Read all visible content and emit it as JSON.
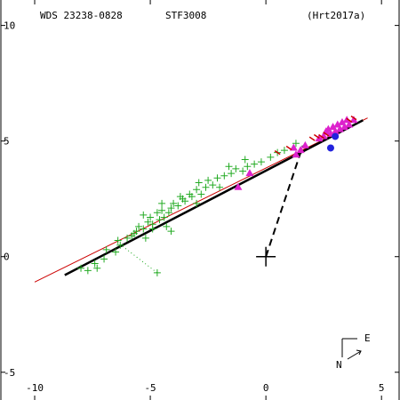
{
  "header": {
    "wds_id": "WDS 23238-0828",
    "discoverer": "STF3008",
    "orbit_ref": "(Hrt2017a)"
  },
  "compass": {
    "east_label": "E",
    "north_label": "N"
  },
  "colors": {
    "micrometer": "#22aa22",
    "speckle": "#dd22cc",
    "orbit": "#000000",
    "linear_fit": "#cc0000",
    "recent": "#2222dd"
  },
  "chart_data": {
    "type": "scatter",
    "title": "",
    "xlabel": "",
    "ylabel": "",
    "xlim": [
      -11.5,
      5.8
    ],
    "ylim": [
      -6.2,
      11.1
    ],
    "x_ticks": [
      -10,
      -5,
      0,
      5
    ],
    "y_ticks": [
      -5,
      0,
      5,
      10
    ],
    "x_tick_labels": [
      "-10",
      "-5",
      "0",
      "5"
    ],
    "y_tick_labels": [
      "-5",
      "0",
      "5",
      "10"
    ],
    "grid": false,
    "primary_star": [
      0,
      0
    ],
    "periastron_connector": {
      "from": [
        0,
        0
      ],
      "to": [
        1.6,
        4.8
      ]
    },
    "orbit_line": {
      "from": [
        -8.7,
        -0.8
      ],
      "to": [
        4.2,
        5.9
      ]
    },
    "linear_fit_line": {
      "from": [
        -10,
        -1.1
      ],
      "to": [
        4.4,
        6.0
      ]
    },
    "dotted_residual": {
      "from": [
        -6.2,
        0.45
      ],
      "to": [
        -4.7,
        -0.7
      ]
    },
    "series": [
      {
        "marker": "plus",
        "points": [
          [
            -8.0,
            -0.5
          ],
          [
            -7.7,
            -0.6
          ],
          [
            -7.4,
            -0.3
          ],
          [
            -7.0,
            -0.1
          ],
          [
            -6.9,
            0.3
          ],
          [
            -6.5,
            0.2
          ],
          [
            -6.3,
            0.5
          ],
          [
            -6.0,
            0.8
          ],
          [
            -5.8,
            0.9
          ],
          [
            -5.6,
            1.1
          ],
          [
            -5.5,
            1.3
          ],
          [
            -5.3,
            1.2
          ],
          [
            -5.1,
            1.5
          ],
          [
            -5.0,
            1.7
          ],
          [
            -4.9,
            1.4
          ],
          [
            -4.7,
            1.9
          ],
          [
            -4.6,
            1.6
          ],
          [
            -4.5,
            2.0
          ],
          [
            -4.4,
            1.7
          ],
          [
            -4.3,
            1.3
          ],
          [
            -4.2,
            1.9
          ],
          [
            -4.1,
            2.1
          ],
          [
            -4.0,
            2.3
          ],
          [
            -3.8,
            2.2
          ],
          [
            -3.6,
            2.5
          ],
          [
            -3.5,
            2.4
          ],
          [
            -3.3,
            2.7
          ],
          [
            -3.2,
            2.6
          ],
          [
            -3.0,
            2.9
          ],
          [
            -2.8,
            2.7
          ],
          [
            -2.6,
            3.0
          ],
          [
            -2.5,
            3.3
          ],
          [
            -2.3,
            3.1
          ],
          [
            -2.1,
            3.4
          ],
          [
            -2.0,
            3.0
          ],
          [
            -1.8,
            3.5
          ],
          [
            -1.5,
            3.6
          ],
          [
            -1.3,
            3.8
          ],
          [
            -1.0,
            3.7
          ],
          [
            -0.8,
            3.9
          ],
          [
            -0.5,
            4.0
          ],
          [
            -0.2,
            4.1
          ],
          [
            0.2,
            4.3
          ],
          [
            0.5,
            4.5
          ],
          [
            0.8,
            4.6
          ],
          [
            -4.7,
            -0.7
          ],
          [
            -4.9,
            1.2
          ],
          [
            -5.3,
            1.8
          ],
          [
            -4.5,
            2.3
          ],
          [
            -3.0,
            2.3
          ],
          [
            -3.7,
            2.6
          ],
          [
            -2.9,
            3.2
          ],
          [
            -1.6,
            3.9
          ],
          [
            -0.9,
            4.2
          ],
          [
            -6.4,
            0.7
          ],
          [
            -5.7,
            1.0
          ],
          [
            -4.1,
            1.1
          ],
          [
            1.3,
            4.9
          ],
          [
            -7.3,
            -0.5
          ],
          [
            -5.2,
            0.8
          ]
        ]
      },
      {
        "marker": "triangle",
        "points": [
          [
            1.3,
            4.4
          ],
          [
            1.5,
            4.6
          ],
          [
            1.7,
            4.8
          ],
          [
            2.3,
            5.1
          ],
          [
            2.5,
            5.2
          ],
          [
            2.7,
            5.5
          ],
          [
            2.9,
            5.6
          ],
          [
            3.1,
            5.7
          ],
          [
            3.3,
            5.8
          ],
          [
            3.5,
            5.9
          ],
          [
            3.8,
            5.9
          ],
          [
            3.0,
            5.4
          ],
          [
            2.8,
            5.3
          ],
          [
            3.4,
            5.6
          ],
          [
            3.2,
            5.5
          ],
          [
            2.6,
            5.4
          ],
          [
            3.6,
            5.7
          ],
          [
            1.2,
            4.7
          ],
          [
            -1.2,
            3.0
          ],
          [
            -0.7,
            3.6
          ]
        ]
      },
      {
        "marker": "circle",
        "points": [
          [
            2.8,
            4.7
          ],
          [
            3.0,
            5.2
          ]
        ]
      },
      {
        "marker": "red-tick",
        "points": [
          [
            2.0,
            5.1
          ],
          [
            2.2,
            5.2
          ],
          [
            2.4,
            5.2
          ],
          [
            2.6,
            5.3
          ],
          [
            3.6,
            5.9
          ],
          [
            3.8,
            6.0
          ],
          [
            1.0,
            4.7
          ],
          [
            0.5,
            4.5
          ]
        ]
      }
    ]
  }
}
